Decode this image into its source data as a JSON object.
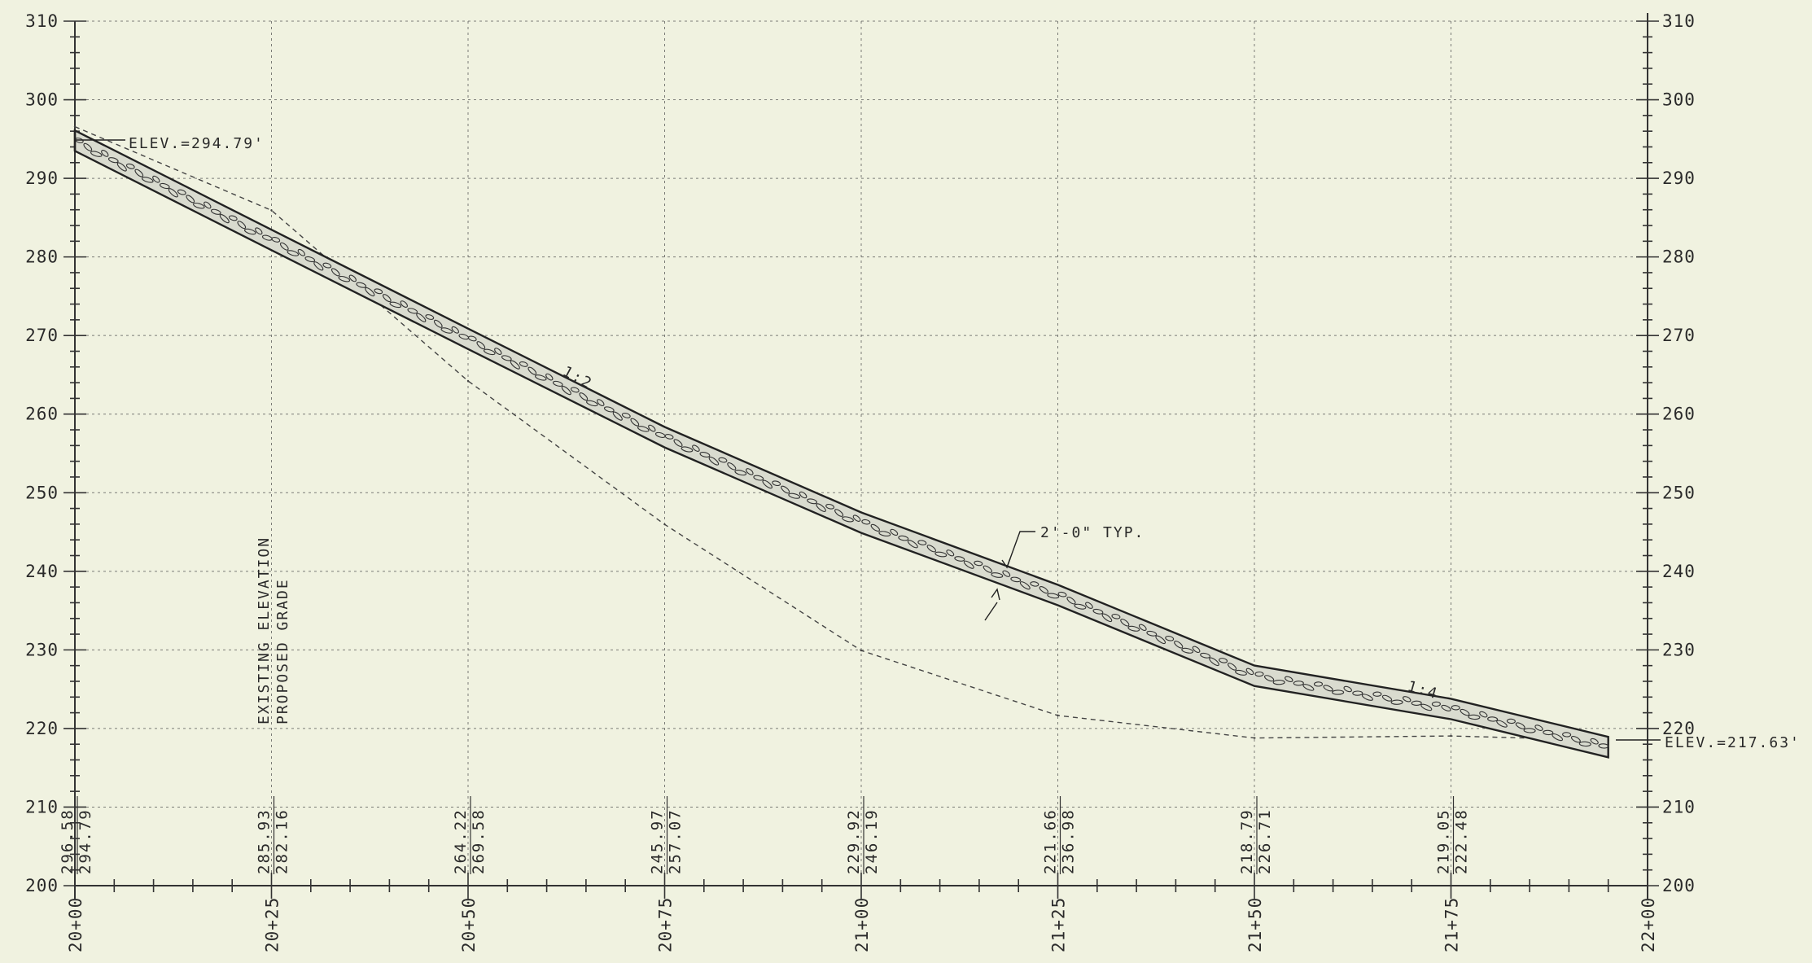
{
  "chart_data": {
    "type": "line",
    "title": "",
    "xlabel": "",
    "ylabel": "",
    "ylim": [
      200,
      310
    ],
    "y_ticks": [
      "200",
      "210",
      "220",
      "230",
      "240",
      "250",
      "260",
      "270",
      "280",
      "290",
      "300",
      "310"
    ],
    "x_ticks": [
      "20+00",
      "20+25",
      "20+50",
      "20+75",
      "21+00",
      "21+25",
      "21+50",
      "21+75",
      "22+00"
    ],
    "stations_ft": [
      2000,
      2025,
      2050,
      2075,
      2100,
      2125,
      2150,
      2175,
      2200
    ],
    "grid": true,
    "series": [
      {
        "name": "EXISTING ELEVATION",
        "style": "dashed",
        "x": [
          2000,
          2025,
          2050,
          2075,
          2100,
          2125,
          2150,
          2175,
          2195
        ],
        "y": [
          296.58,
          285.93,
          264.22,
          245.97,
          229.92,
          221.66,
          218.79,
          219.05,
          218.5
        ]
      },
      {
        "name": "PROPOSED GRADE",
        "style": "solid",
        "x": [
          2000,
          2025,
          2050,
          2075,
          2100,
          2125,
          2150,
          2175,
          2195
        ],
        "y": [
          294.79,
          282.16,
          269.58,
          257.07,
          246.19,
          236.98,
          226.71,
          222.48,
          217.63
        ]
      }
    ],
    "elevation_columns": [
      {
        "station": "20+00",
        "existing": "296.58",
        "proposed": "294.79"
      },
      {
        "station": "20+25",
        "existing": "285.93",
        "proposed": "282.16"
      },
      {
        "station": "20+50",
        "existing": "264.22",
        "proposed": "269.58"
      },
      {
        "station": "20+75",
        "existing": "245.97",
        "proposed": "257.07"
      },
      {
        "station": "21+00",
        "existing": "229.92",
        "proposed": "246.19"
      },
      {
        "station": "21+25",
        "existing": "221.66",
        "proposed": "236.98"
      },
      {
        "station": "21+50",
        "existing": "218.79",
        "proposed": "226.71"
      },
      {
        "station": "21+75",
        "existing": "219.05",
        "proposed": "222.48"
      }
    ],
    "annotations": {
      "start_elev": "ELEV.=294.79'",
      "end_elev": "ELEV.=217.63'",
      "slope_upper": "1:2",
      "slope_lower": "1:4",
      "thickness": "2'-0\" TYP.",
      "legend_existing": "EXISTING ELEVATION",
      "legend_proposed": "PROPOSED GRADE"
    }
  }
}
